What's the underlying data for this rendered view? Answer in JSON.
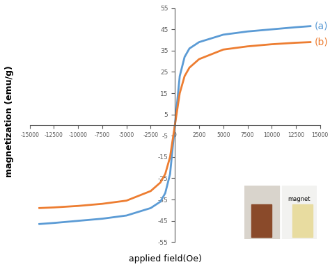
{
  "chart_data": {
    "type": "line",
    "x_label": "applied field(Oe)",
    "y_label": "magnetization (emu/g)",
    "x": [
      -14000,
      -12500,
      -10000,
      -7500,
      -5000,
      -2500,
      -1500,
      -1000,
      -500,
      0,
      500,
      1000,
      1500,
      2500,
      5000,
      7500,
      10000,
      12500,
      14000
    ],
    "series": [
      {
        "name": "(a)",
        "color": "#5b9bd5",
        "values": [
          -46.5,
          -46,
          -45,
          -44,
          -42.5,
          -39,
          -36,
          -32,
          -23,
          0,
          23,
          32,
          36,
          39,
          42.5,
          44,
          45,
          46,
          46.5
        ]
      },
      {
        "name": "(b)",
        "color": "#ed7d31",
        "values": [
          -39,
          -38.7,
          -38,
          -37,
          -35.5,
          -31,
          -27,
          -23,
          -15,
          0,
          15,
          23,
          27,
          31,
          35.5,
          37,
          38,
          38.7,
          39
        ]
      }
    ],
    "xlim": [
      -15000,
      15000
    ],
    "xticks": [
      -15000,
      -12500,
      -10000,
      -7500,
      -5000,
      -2500,
      0,
      2500,
      5000,
      7500,
      10000,
      12500,
      15000
    ],
    "ylim": [
      -55,
      55
    ],
    "yticks": [
      -55,
      -45,
      -35,
      -25,
      -15,
      -5,
      5,
      15,
      25,
      35,
      45,
      55
    ],
    "grid": false,
    "inset_text": "magnet"
  }
}
